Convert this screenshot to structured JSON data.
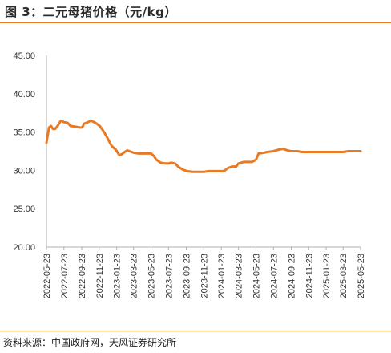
{
  "title": "图 3：二元母猪价格（元/kg）",
  "source": "资料来源：中国政府网，天风证券研究所",
  "colors": {
    "accent": "#e97a24",
    "line": "#e97a24",
    "axis": "#b0b0b0"
  },
  "chart_data": {
    "type": "line",
    "title": "图 3：二元母猪价格（元/kg）",
    "xlabel": "",
    "ylabel": "",
    "ylim": [
      20,
      45
    ],
    "yticks": [
      "20.00",
      "25.00",
      "30.00",
      "35.00",
      "40.00",
      "45.00"
    ],
    "xticks": [
      "2022-05-23",
      "2022-07-23",
      "2022-09-23",
      "2022-11-23",
      "2023-01-23",
      "2023-03-23",
      "2023-05-23",
      "2023-07-23",
      "2023-09-23",
      "2023-11-23",
      "2024-01-23",
      "2024-03-23",
      "2024-05-23",
      "2024-07-23",
      "2024-09-23",
      "2024-11-23",
      "2025-01-23",
      "2025-03-23",
      "2025-05-23"
    ],
    "grid": false,
    "legend": "none",
    "series": [
      {
        "name": "",
        "points": [
          [
            "2022-05-23",
            33.6
          ],
          [
            "2022-06-01",
            35.6
          ],
          [
            "2022-06-08",
            35.8
          ],
          [
            "2022-06-15",
            35.4
          ],
          [
            "2022-06-22",
            35.4
          ],
          [
            "2022-07-01",
            35.8
          ],
          [
            "2022-07-12",
            36.5
          ],
          [
            "2022-07-23",
            36.3
          ],
          [
            "2022-08-05",
            36.2
          ],
          [
            "2022-08-15",
            35.8
          ],
          [
            "2022-09-01",
            35.7
          ],
          [
            "2022-09-15",
            35.6
          ],
          [
            "2022-09-25",
            35.6
          ],
          [
            "2022-10-01",
            36.1
          ],
          [
            "2022-10-15",
            36.3
          ],
          [
            "2022-10-25",
            36.5
          ],
          [
            "2022-11-10",
            36.2
          ],
          [
            "2022-11-25",
            35.8
          ],
          [
            "2022-12-10",
            35.0
          ],
          [
            "2022-12-25",
            34.0
          ],
          [
            "2023-01-05",
            33.2
          ],
          [
            "2023-01-20",
            32.7
          ],
          [
            "2023-02-01",
            32.0
          ],
          [
            "2023-02-10",
            32.1
          ],
          [
            "2023-02-20",
            32.4
          ],
          [
            "2023-03-01",
            32.6
          ],
          [
            "2023-03-23",
            32.3
          ],
          [
            "2023-04-10",
            32.2
          ],
          [
            "2023-05-01",
            32.2
          ],
          [
            "2023-05-23",
            32.2
          ],
          [
            "2023-06-01",
            31.9
          ],
          [
            "2023-06-10",
            31.4
          ],
          [
            "2023-06-25",
            31.0
          ],
          [
            "2023-07-10",
            30.9
          ],
          [
            "2023-07-23",
            30.9
          ],
          [
            "2023-08-01",
            31.0
          ],
          [
            "2023-08-15",
            30.9
          ],
          [
            "2023-08-25",
            30.5
          ],
          [
            "2023-09-10",
            30.1
          ],
          [
            "2023-09-25",
            29.9
          ],
          [
            "2023-10-15",
            29.8
          ],
          [
            "2023-11-01",
            29.8
          ],
          [
            "2023-11-23",
            29.8
          ],
          [
            "2023-12-10",
            29.9
          ],
          [
            "2024-01-01",
            29.9
          ],
          [
            "2024-01-15",
            29.9
          ],
          [
            "2024-02-01",
            29.9
          ],
          [
            "2024-02-15",
            30.3
          ],
          [
            "2024-03-01",
            30.5
          ],
          [
            "2024-03-15",
            30.5
          ],
          [
            "2024-03-23",
            30.9
          ],
          [
            "2024-04-10",
            31.1
          ],
          [
            "2024-04-25",
            31.1
          ],
          [
            "2024-05-10",
            31.1
          ],
          [
            "2024-05-23",
            31.4
          ],
          [
            "2024-06-01",
            32.2
          ],
          [
            "2024-06-20",
            32.3
          ],
          [
            "2024-07-01",
            32.4
          ],
          [
            "2024-07-23",
            32.5
          ],
          [
            "2024-08-10",
            32.7
          ],
          [
            "2024-08-25",
            32.8
          ],
          [
            "2024-09-10",
            32.6
          ],
          [
            "2024-09-23",
            32.5
          ],
          [
            "2024-10-15",
            32.5
          ],
          [
            "2024-11-01",
            32.4
          ],
          [
            "2024-11-23",
            32.4
          ],
          [
            "2025-01-23",
            32.4
          ],
          [
            "2025-03-23",
            32.4
          ],
          [
            "2025-04-10",
            32.5
          ],
          [
            "2025-05-23",
            32.5
          ]
        ]
      }
    ]
  }
}
